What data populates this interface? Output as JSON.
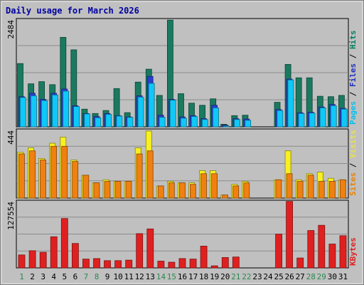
{
  "chart_data": {
    "type": "bar",
    "title": "Daily usage for March 2026",
    "categories": [
      "1",
      "2",
      "3",
      "4",
      "5",
      "6",
      "7",
      "8",
      "9",
      "10",
      "11",
      "12",
      "13",
      "14",
      "15",
      "16",
      "17",
      "18",
      "19",
      "20",
      "21",
      "22",
      "23",
      "24",
      "25",
      "26",
      "27",
      "28",
      "29",
      "30",
      "31"
    ],
    "weekend_days": [
      "1",
      "7",
      "8",
      "14",
      "15",
      "21",
      "22",
      "28",
      "29"
    ],
    "panels": [
      {
        "name": "hits-panel",
        "ymax_label": "2484",
        "ymax": 2484,
        "ylabel_parts": [
          {
            "text": "Pages",
            "color": "#00c0f0"
          },
          {
            "text": " / ",
            "color": "#000000"
          },
          {
            "text": "Files",
            "color": "#2030c0"
          },
          {
            "text": " / ",
            "color": "#000000"
          },
          {
            "text": "Hits",
            "color": "#008060"
          }
        ],
        "series": [
          {
            "name": "Hits",
            "color": "#1a7a60",
            "values": [
              1470,
              1000,
              1050,
              980,
              2080,
              1790,
              410,
              310,
              380,
              890,
              330,
              1040,
              1340,
              730,
              2480,
              770,
              550,
              500,
              650,
              60,
              260,
              270,
              0,
              0,
              570,
              1450,
              1140,
              1140,
              710,
              700,
              730
            ]
          },
          {
            "name": "Files",
            "color": "#2a3fd0",
            "values": [
              700,
              780,
              640,
              780,
              880,
              490,
              310,
              240,
              310,
              260,
              230,
              720,
              1170,
              270,
              640,
              230,
              260,
              190,
              500,
              40,
              190,
              180,
              0,
              0,
              400,
              1110,
              330,
              340,
              460,
              520,
              430
            ]
          },
          {
            "name": "Pages",
            "color": "#10c8f8",
            "values": [
              680,
              720,
              610,
              740,
              830,
              470,
              300,
              210,
              290,
              250,
              220,
              690,
              1010,
              220,
              620,
              200,
              240,
              170,
              440,
              20,
              170,
              150,
              0,
              0,
              380,
              1090,
              310,
              320,
              440,
              490,
              410
            ]
          }
        ]
      },
      {
        "name": "visits-panel",
        "ymax_label": "444",
        "ymax": 444,
        "ylabel_parts": [
          {
            "text": "Sites",
            "color": "#f08000"
          },
          {
            "text": " / ",
            "color": "#000000"
          },
          {
            "text": "Visits",
            "color": "#e8e050"
          }
        ],
        "series": [
          {
            "name": "Visits",
            "color": "#f8f020",
            "values": [
              300,
              330,
              260,
              360,
              400,
              250,
              150,
              100,
              120,
              110,
              110,
              330,
              440,
              80,
              110,
              100,
              100,
              180,
              180,
              20,
              90,
              110,
              0,
              0,
              120,
              310,
              120,
              160,
              170,
              130,
              120
            ]
          },
          {
            "name": "Sites",
            "color": "#f08010",
            "values": [
              290,
              310,
              250,
              340,
              340,
              240,
              150,
              100,
              110,
              110,
              110,
              290,
              310,
              80,
              100,
              100,
              90,
              160,
              160,
              20,
              80,
              100,
              0,
              0,
              120,
              160,
              110,
              150,
              110,
              110,
              120
            ]
          }
        ]
      },
      {
        "name": "kbytes-panel",
        "ymax_label": "127554",
        "ymax": 127554,
        "ylabel_parts": [
          {
            "text": "KBytes",
            "color": "#e02020"
          }
        ],
        "series": [
          {
            "name": "KBytes",
            "color": "#e02020",
            "values": [
              25000,
              33000,
              30000,
              60000,
              95000,
              47000,
              17000,
              18000,
              14000,
              14000,
              15000,
              66000,
              75000,
              13000,
              11000,
              18000,
              17000,
              42000,
              4000,
              20000,
              21000,
              0,
              0,
              0,
              65000,
              128000,
              19000,
              72000,
              82000,
              46000,
              62000
            ]
          }
        ]
      }
    ]
  }
}
